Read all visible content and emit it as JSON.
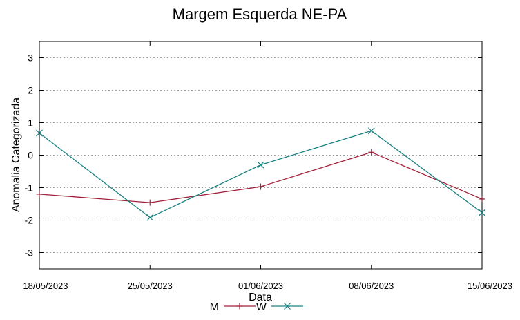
{
  "chart_data": {
    "type": "line",
    "title": "Margem Esquerda NE-PA",
    "xlabel": "Data",
    "ylabel": "Anomalia Categorizada",
    "x": [
      "18/05/2023",
      "25/05/2023",
      "01/06/2023",
      "08/06/2023",
      "15/06/2023"
    ],
    "ylim": [
      -3.5,
      3.5
    ],
    "yticks": [
      "3",
      "2",
      "1",
      "0",
      "-1",
      "-2",
      "-3"
    ],
    "ytick_values": [
      3,
      2,
      1,
      0,
      -1,
      -2,
      -3
    ],
    "grid": true,
    "legend_position": "bottom-center",
    "series": [
      {
        "name": "M",
        "color": "#a0203a",
        "marker": "plus",
        "values": [
          -1.2,
          -1.46,
          -0.97,
          0.09,
          -1.35
        ]
      },
      {
        "name": "W",
        "color": "#1a8080",
        "marker": "cross",
        "values": [
          0.68,
          -1.92,
          -0.3,
          0.75,
          -1.77
        ]
      }
    ]
  }
}
